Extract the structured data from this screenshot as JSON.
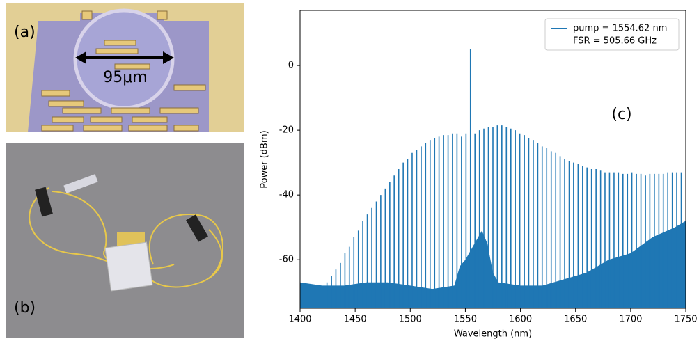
{
  "panels": {
    "a": {
      "label": "(a)",
      "scale_label": "95μm"
    },
    "b": {
      "label": "(b)"
    }
  },
  "chart_data": {
    "type": "spectrum",
    "annotation": "(c)",
    "xlabel": "Wavelength (nm)",
    "ylabel": "Power (dBm)",
    "xlim": [
      1400,
      1750
    ],
    "ylim": [
      -75,
      17
    ],
    "xticks": [
      1400,
      1450,
      1500,
      1550,
      1600,
      1650,
      1700,
      1750
    ],
    "yticks": [
      0,
      -20,
      -40,
      -60
    ],
    "legend": "upper right",
    "legend_note": "FSR = 505.66 GHz",
    "series": [
      {
        "name": "pump = 1554.62 nm",
        "color": "#1f77b4",
        "x": [
          1424.4,
          1428.5,
          1432.5,
          1436.6,
          1440.7,
          1444.7,
          1448.8,
          1452.9,
          1456.9,
          1461.0,
          1465.1,
          1469.2,
          1473.2,
          1477.3,
          1481.4,
          1485.4,
          1489.5,
          1493.6,
          1497.6,
          1501.7,
          1505.8,
          1509.9,
          1513.9,
          1518.0,
          1522.1,
          1526.1,
          1530.2,
          1534.3,
          1538.3,
          1542.4,
          1546.5,
          1550.6,
          1554.62,
          1558.7,
          1562.8,
          1566.8,
          1570.9,
          1575.0,
          1579.0,
          1583.1,
          1587.2,
          1591.3,
          1595.3,
          1599.4,
          1603.5,
          1607.5,
          1611.6,
          1615.7,
          1619.7,
          1623.8,
          1627.9,
          1632.0,
          1636.0,
          1640.1,
          1644.2,
          1648.2,
          1652.3,
          1656.4,
          1660.4,
          1664.5,
          1668.6,
          1672.7,
          1676.7,
          1680.8,
          1684.9,
          1688.9,
          1693.0,
          1697.1,
          1701.1,
          1705.2,
          1709.3,
          1713.4,
          1717.4,
          1721.5,
          1725.6,
          1729.6,
          1733.7,
          1737.8,
          1741.8,
          1745.9
        ],
        "values": [
          -67,
          -65,
          -63,
          -61,
          -58,
          -56,
          -53,
          -51,
          -48,
          -46,
          -44,
          -42,
          -40,
          -38,
          -36,
          -34,
          -32,
          -30,
          -29,
          -27,
          -26,
          -25,
          -24,
          -23,
          -22.5,
          -22,
          -21.5,
          -21.5,
          -21,
          -21,
          -22,
          -21,
          5,
          -21,
          -20,
          -19.5,
          -19,
          -19,
          -18.5,
          -18.5,
          -19,
          -19.5,
          -20,
          -21,
          -21.5,
          -22.5,
          -23,
          -24,
          -25,
          -25.5,
          -26.5,
          -27,
          -28,
          -29,
          -29.5,
          -30,
          -30.5,
          -31,
          -31.5,
          -32,
          -32,
          -32.5,
          -33,
          -33,
          -33,
          -33,
          -33.5,
          -33.5,
          -33,
          -33.5,
          -33.5,
          -34,
          -33.5,
          -33.5,
          -33.5,
          -33.5,
          -33,
          -33,
          -33,
          -33
        ]
      }
    ],
    "noise_floor": {
      "x": [
        1400,
        1420,
        1440,
        1460,
        1480,
        1500,
        1520,
        1540,
        1545,
        1550,
        1560,
        1565,
        1570,
        1575,
        1580,
        1600,
        1620,
        1640,
        1660,
        1680,
        1700,
        1720,
        1740,
        1750
      ],
      "values": [
        -67,
        -68,
        -68,
        -67,
        -67,
        -68,
        -69,
        -68,
        -62,
        -60,
        -54,
        -51,
        -55,
        -64,
        -67,
        -68,
        -68,
        -66,
        -64,
        -60,
        -58,
        -53,
        -50,
        -48
      ]
    }
  }
}
